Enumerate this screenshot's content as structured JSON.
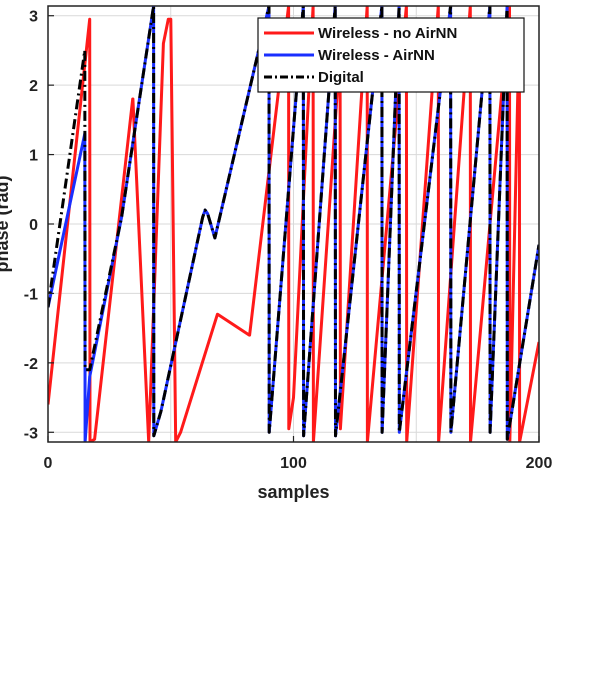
{
  "chart_data": {
    "type": "line",
    "title": "",
    "xlabel": "samples",
    "ylabel": "phase (rad)",
    "xlim": [
      0,
      200
    ],
    "ylim": [
      -3.14,
      3.14
    ],
    "xticks": [
      0,
      100,
      200
    ],
    "yticks": [
      -3,
      -2,
      -1,
      0,
      1,
      2,
      3
    ],
    "grid": true,
    "legend_position": "top-right",
    "series": [
      {
        "name": "Wireless - no AirNN",
        "color": "#ff1a1a",
        "style": "solid",
        "x": [
          0,
          17,
          17.1,
          19,
          34.5,
          34.6,
          41,
          47,
          49,
          50,
          52,
          54,
          69,
          69.1,
          82,
          82.1,
          98,
          98.1,
          100,
          108,
          108.1,
          119,
          119.1,
          130,
          130.1,
          146,
          146.1,
          159,
          159.1,
          172,
          172.1,
          188,
          188.1,
          192,
          192.1,
          200
        ],
        "values": [
          -2.6,
          2.95,
          -3.14,
          -3.1,
          1.8,
          1.8,
          -3.14,
          2.6,
          2.95,
          2.95,
          -3.14,
          -3.0,
          -1.3,
          -1.3,
          -1.6,
          -1.6,
          3.14,
          -2.95,
          -2.5,
          3.14,
          -3.14,
          2.5,
          -2.95,
          3.14,
          -3.14,
          3.14,
          -3.14,
          3.14,
          -3.14,
          3.14,
          -3.14,
          3.14,
          -3.14,
          2.9,
          -3.14,
          -1.7
        ]
      },
      {
        "name": "Wireless - AirNN",
        "color": "#1a2fff",
        "style": "solid",
        "x": [
          0,
          15,
          15.1,
          17,
          30,
          43,
          43.1,
          46,
          63,
          64,
          65,
          68,
          90,
          90.1,
          104,
          104.1,
          117,
          117.1,
          136,
          136.1,
          143,
          143.1,
          164,
          164.1,
          180,
          180.1,
          187,
          187.1,
          200
        ],
        "values": [
          -1.2,
          1.3,
          -3.14,
          -2.2,
          0.1,
          3.14,
          -3.05,
          -2.7,
          0.1,
          0.2,
          0.15,
          -0.2,
          3.14,
          -3.0,
          3.14,
          -3.05,
          3.14,
          -3.05,
          3.14,
          -3.0,
          3.14,
          -3.0,
          3.14,
          -3.0,
          3.14,
          -3.0,
          3.14,
          -3.1,
          -0.3
        ]
      },
      {
        "name": "Digital",
        "color": "#000000",
        "style": "dashdot",
        "x": [
          0,
          15,
          15.1,
          17,
          30,
          43,
          43.1,
          46,
          63,
          64,
          65,
          68,
          90,
          90.1,
          104,
          104.1,
          117,
          117.1,
          136,
          136.1,
          143,
          143.1,
          164,
          164.1,
          180,
          180.1,
          187,
          187.1,
          200
        ],
        "values": [
          -1.2,
          2.5,
          -2.1,
          -2.1,
          0.1,
          3.14,
          -3.05,
          -2.7,
          0.1,
          0.2,
          0.15,
          -0.2,
          3.14,
          -3.0,
          3.14,
          -3.05,
          3.14,
          -3.05,
          3.14,
          -3.0,
          3.14,
          -3.0,
          3.14,
          -3.0,
          3.14,
          -3.0,
          3.14,
          -3.1,
          -0.3
        ]
      }
    ]
  }
}
